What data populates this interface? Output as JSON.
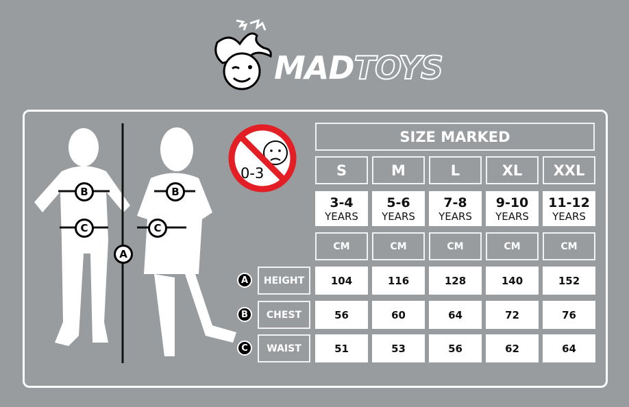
{
  "brand": {
    "name_part1": "MAD",
    "name_part2": "TOYS"
  },
  "warning": {
    "label": "0-3",
    "color": "#e31e24"
  },
  "table": {
    "header": "SIZE MARKED",
    "sizes": [
      "S",
      "M",
      "L",
      "XL",
      "XXL"
    ],
    "ages": [
      {
        "range": "3-4",
        "unit": "YEARS"
      },
      {
        "range": "5-6",
        "unit": "YEARS"
      },
      {
        "range": "7-8",
        "unit": "YEARS"
      },
      {
        "range": "9-10",
        "unit": "YEARS"
      },
      {
        "range": "11-12",
        "unit": "YEARS"
      }
    ],
    "unit_row": [
      "CM",
      "CM",
      "CM",
      "CM",
      "CM"
    ],
    "rows": [
      {
        "marker": "A",
        "label": "HEIGHT",
        "values": [
          "104",
          "116",
          "128",
          "140",
          "152"
        ]
      },
      {
        "marker": "B",
        "label": "CHEST",
        "values": [
          "56",
          "60",
          "64",
          "72",
          "76"
        ]
      },
      {
        "marker": "C",
        "label": "WAIST",
        "values": [
          "51",
          "53",
          "56",
          "62",
          "64"
        ]
      }
    ]
  },
  "figure": {
    "markers": [
      "A",
      "B",
      "C"
    ]
  }
}
